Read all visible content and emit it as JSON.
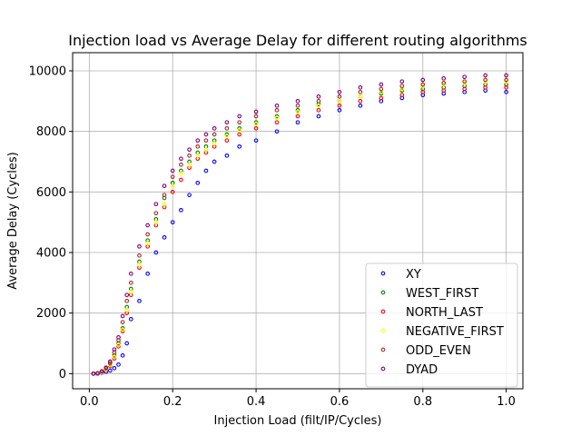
{
  "chart_data": {
    "type": "scatter",
    "title": "Injection load vs Average Delay for different routing algorithms",
    "xlabel": "Injection Load (filt/IP/Cycles)",
    "ylabel": "Average Delay (Cycles)",
    "xlim": [
      -0.04,
      1.04
    ],
    "ylim": [
      -500,
      10600
    ],
    "x_ticks": [
      0.0,
      0.2,
      0.4,
      0.6,
      0.8,
      1.0
    ],
    "x_tick_labels": [
      "0.0",
      "0.2",
      "0.4",
      "0.6",
      "0.8",
      "1.0"
    ],
    "y_ticks": [
      0,
      2000,
      4000,
      6000,
      8000,
      10000
    ],
    "y_tick_labels": [
      "0",
      "2000",
      "4000",
      "6000",
      "8000",
      "10000"
    ],
    "grid": true,
    "legend_position": "lower-right",
    "x": [
      0.01,
      0.02,
      0.03,
      0.04,
      0.05,
      0.06,
      0.07,
      0.08,
      0.09,
      0.1,
      0.12,
      0.14,
      0.16,
      0.18,
      0.2,
      0.22,
      0.24,
      0.26,
      0.28,
      0.3,
      0.33,
      0.36,
      0.4,
      0.45,
      0.5,
      0.55,
      0.6,
      0.65,
      0.7,
      0.75,
      0.8,
      0.85,
      0.9,
      0.95,
      1.0
    ],
    "series": [
      {
        "name": "XY",
        "color": "#0000ff",
        "values": [
          0,
          0,
          30,
          60,
          100,
          180,
          300,
          600,
          1000,
          1800,
          2400,
          3300,
          4000,
          4500,
          5000,
          5400,
          5900,
          6300,
          6700,
          7000,
          7200,
          7500,
          7700,
          8000,
          8300,
          8500,
          8700,
          8850,
          9000,
          9100,
          9200,
          9250,
          9300,
          9350,
          9300
        ]
      },
      {
        "name": "WEST_FIRST",
        "color": "#008000",
        "values": [
          0,
          10,
          60,
          150,
          300,
          600,
          1000,
          1500,
          2200,
          2800,
          3700,
          4400,
          5100,
          5800,
          6300,
          6700,
          7000,
          7300,
          7500,
          7700,
          7900,
          8100,
          8300,
          8500,
          8700,
          8900,
          9000,
          9150,
          9250,
          9350,
          9400,
          9450,
          9500,
          9550,
          9550
        ]
      },
      {
        "name": "NORTH_LAST",
        "color": "#ff0000",
        "values": [
          0,
          5,
          40,
          120,
          250,
          500,
          900,
          1400,
          2000,
          2600,
          3500,
          4200,
          4900,
          5500,
          6000,
          6400,
          6800,
          7100,
          7300,
          7500,
          7700,
          7900,
          8100,
          8300,
          8500,
          8700,
          8850,
          9000,
          9100,
          9200,
          9300,
          9350,
          9400,
          9450,
          9450
        ]
      },
      {
        "name": "NEGATIVE_FIRST",
        "color": "#ffff00",
        "values": [
          0,
          8,
          50,
          140,
          280,
          550,
          950,
          1450,
          2100,
          2700,
          3600,
          4300,
          5000,
          5600,
          6200,
          6600,
          6900,
          7200,
          7400,
          7600,
          7850,
          8050,
          8250,
          8450,
          8650,
          8850,
          9000,
          9150,
          9300,
          9400,
          9500,
          9550,
          9600,
          9650,
          9650
        ]
      },
      {
        "name": "ODD_EVEN",
        "color": "#a52a2a",
        "values": [
          0,
          10,
          70,
          180,
          350,
          700,
          1100,
          1700,
          2400,
          3000,
          3900,
          4600,
          5300,
          5900,
          6500,
          6900,
          7200,
          7500,
          7700,
          7900,
          8100,
          8300,
          8500,
          8700,
          8850,
          9000,
          9150,
          9300,
          9400,
          9500,
          9550,
          9600,
          9650,
          9700,
          9700
        ]
      },
      {
        "name": "DYAD",
        "color": "#800080",
        "values": [
          0,
          12,
          80,
          200,
          400,
          800,
          1200,
          1900,
          2600,
          3300,
          4200,
          4900,
          5600,
          6200,
          6700,
          7100,
          7400,
          7700,
          7900,
          8100,
          8300,
          8500,
          8650,
          8850,
          9000,
          9150,
          9300,
          9450,
          9550,
          9650,
          9700,
          9750,
          9800,
          9850,
          9850
        ]
      }
    ]
  }
}
